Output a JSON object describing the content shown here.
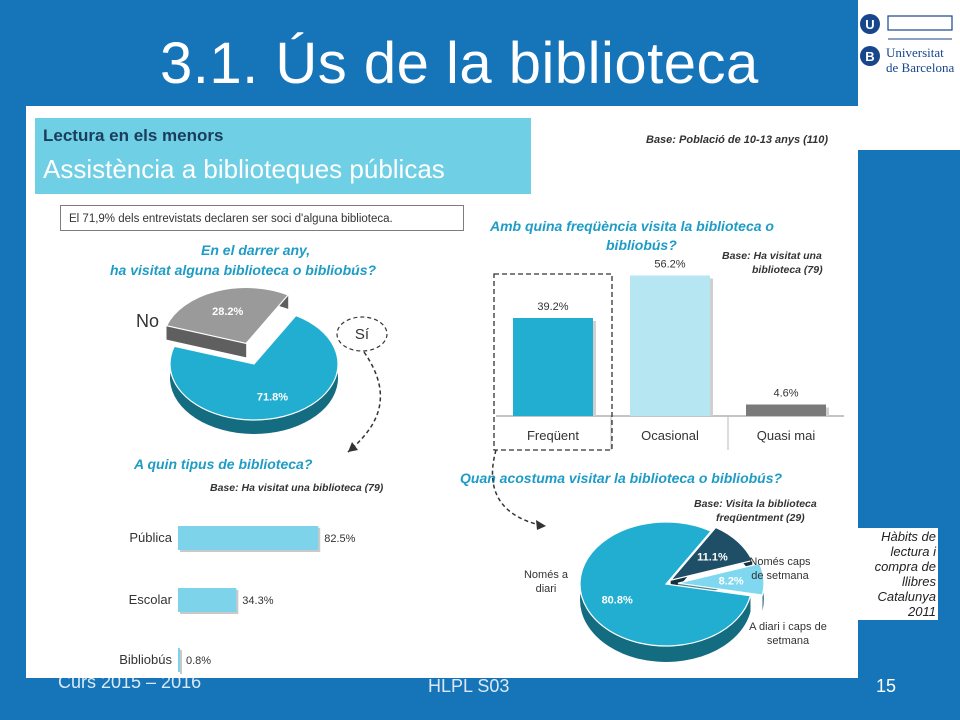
{
  "slide": {
    "title": "3.1. Ús de la biblioteca",
    "footer_left": "Curs 2015 – 2016",
    "footer_center": "HLPL S03",
    "page_number": "15",
    "side_note": "Hàbits de lectura i compra de llibres Catalunya 2011",
    "logo_line1": "Universitat",
    "logo_line2": "de Barcelona"
  },
  "panel": {
    "header_small": "Lectura en els menors",
    "header_big": "Assistència a biblioteques públicas",
    "base_top": "Base: Població de 10-13 anys (110)",
    "note": "El 71,9% dels entrevistats declaren ser soci d'alguna biblioteca.",
    "q1_line1": "En el darrer any,",
    "q1_line2": "ha visitat alguna biblioteca o bibliobús?",
    "label_no": "No",
    "label_si": "Sí",
    "q2": "A quin tipus de biblioteca?",
    "q2_base": "Base: Ha visitat una biblioteca (79)",
    "q3_line1": "Amb quina freqüència visita la biblioteca o",
    "q3_line2": "bibliobús?",
    "q3_base_line1": "Base: Ha visitat una",
    "q3_base_line2": "biblioteca (79)",
    "q4": "Quan acostuma visitar la biblioteca o bibliobús?",
    "q4_base_line1": "Base: Visita la biblioteca",
    "q4_base_line2": "freqüentment (29)"
  },
  "chart_data": [
    {
      "type": "pie",
      "title": "En el darrer any, ha visitat alguna biblioteca o bibliobús?",
      "categories": [
        "Sí",
        "No"
      ],
      "values": [
        71.8,
        28.2
      ],
      "value_labels": [
        "71.8%",
        "28.2%"
      ],
      "colors": [
        "#21aed0",
        "#9a9a9a"
      ]
    },
    {
      "type": "bar",
      "orientation": "horizontal",
      "title": "A quin tipus de biblioteca?",
      "categories": [
        "Pública",
        "Escolar",
        "Bibliobús"
      ],
      "values": [
        82.5,
        34.3,
        0.8
      ],
      "value_labels": [
        "82.5%",
        "34.3%",
        "0.8%"
      ],
      "color": "#7dd4ea",
      "xlim": [
        0,
        100
      ]
    },
    {
      "type": "bar",
      "title": "Amb quina freqüència visita la biblioteca o bibliobús?",
      "categories": [
        "Freqüent",
        "Ocasional",
        "Quasi mai"
      ],
      "values": [
        39.2,
        56.2,
        4.6
      ],
      "value_labels": [
        "39.2%",
        "56.2%",
        "4.6%"
      ],
      "colors": [
        "#21aed0",
        "#b7e6f3",
        "#7a7a7a"
      ],
      "ylim": [
        0,
        60
      ]
    },
    {
      "type": "pie",
      "title": "Quan acostuma visitar la biblioteca o bibliobús?",
      "categories": [
        "Només a diari",
        "Només caps de setmana",
        "A diari i caps de setmana"
      ],
      "values": [
        80.8,
        11.1,
        8.2
      ],
      "value_labels": [
        "80.8%",
        "11.1%",
        "8.2%"
      ],
      "colors": [
        "#21aed0",
        "#1e4f66",
        "#7fd8ef"
      ]
    }
  ]
}
